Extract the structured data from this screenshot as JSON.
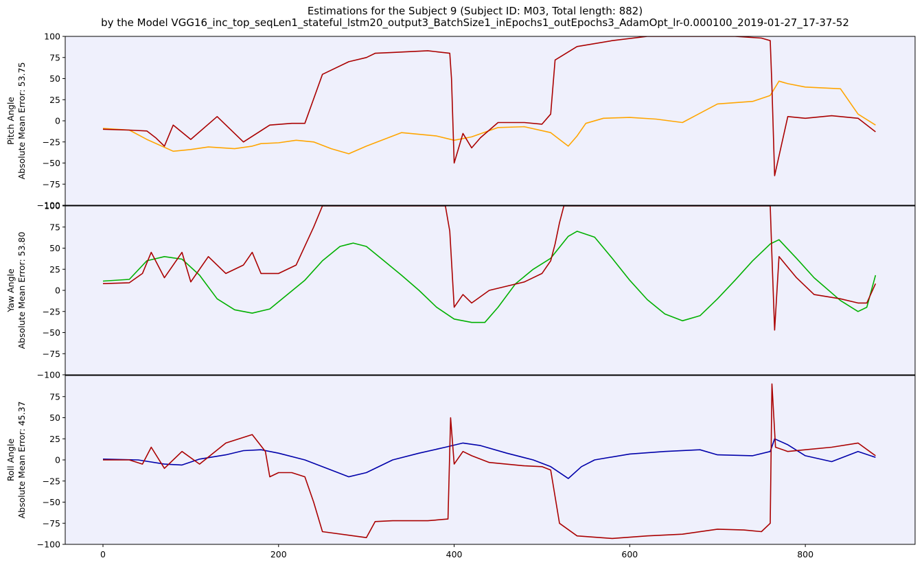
{
  "title_line1": "Estimations for the Subject 9 (Subject ID: M03, Total length: 882)",
  "title_line2": "by the Model VGG16_inc_top_seqLen1_stateful_lstm20_output3_BatchSize1_inEpochs1_outEpochs3_AdamOpt_lr-0.000100_2019-01-27_17-37-52",
  "colors": {
    "panel_bg": "#eff0fc",
    "estimate": "#aa0000",
    "pitch_truth": "#ffa500",
    "yaw_truth": "#00b000",
    "roll_truth": "#0000aa"
  },
  "chart_data": [
    {
      "type": "line",
      "id": "pitch",
      "ylabel_line1": "Pitch Angle",
      "ylabel_line2": "Absolute Mean Error: 53.75",
      "xlim": [
        -43,
        925
      ],
      "ylim": [
        -100,
        100
      ],
      "yticks": [
        -100,
        -75,
        -50,
        -25,
        0,
        25,
        50,
        75,
        100
      ],
      "xticks": [
        0,
        200,
        400,
        600,
        800
      ],
      "grid": false,
      "series": [
        {
          "role": "ground_truth",
          "color": "#ffa500",
          "x": [
            0,
            30,
            50,
            80,
            100,
            120,
            150,
            170,
            180,
            200,
            220,
            240,
            260,
            280,
            300,
            340,
            380,
            400,
            420,
            450,
            480,
            510,
            520,
            530,
            540,
            550,
            570,
            600,
            630,
            660,
            700,
            740,
            760,
            770,
            780,
            800,
            840,
            860,
            880
          ],
          "y": [
            -9,
            -11,
            -22,
            -36,
            -34,
            -31,
            -33,
            -30,
            -27,
            -26,
            -23,
            -25,
            -33,
            -39,
            -30,
            -14,
            -18,
            -23,
            -19,
            -8,
            -7,
            -14,
            -22,
            -30,
            -18,
            -3,
            3,
            4,
            2,
            -2,
            20,
            23,
            30,
            47,
            44,
            40,
            38,
            8,
            -5
          ]
        },
        {
          "role": "estimate",
          "color": "#aa0000",
          "x": [
            0,
            30,
            50,
            60,
            70,
            80,
            100,
            130,
            160,
            190,
            215,
            230,
            250,
            280,
            300,
            310,
            330,
            370,
            395,
            397,
            400,
            410,
            420,
            430,
            450,
            480,
            500,
            510,
            515,
            540,
            580,
            620,
            680,
            720,
            750,
            760,
            762,
            765,
            780,
            800,
            830,
            860,
            880
          ],
          "y": [
            -10,
            -11,
            -12,
            -20,
            -30,
            -5,
            -22,
            5,
            -25,
            -5,
            -3,
            -3,
            55,
            70,
            75,
            80,
            81,
            83,
            80,
            50,
            -50,
            -15,
            -32,
            -20,
            -2,
            -2,
            -4,
            8,
            72,
            88,
            95,
            100,
            100,
            100,
            98,
            95,
            40,
            -65,
            5,
            3,
            6,
            3,
            -13
          ]
        }
      ]
    },
    {
      "type": "line",
      "id": "yaw",
      "ylabel_line1": "Yaw Angle",
      "ylabel_line2": "Absolute Mean Error: 53.80",
      "xlim": [
        -43,
        925
      ],
      "ylim": [
        -100,
        100
      ],
      "yticks": [
        -100,
        -75,
        -50,
        -25,
        0,
        25,
        50,
        75,
        100
      ],
      "xticks": [
        0,
        200,
        400,
        600,
        800
      ],
      "grid": false,
      "series": [
        {
          "role": "ground_truth",
          "color": "#00b000",
          "x": [
            0,
            30,
            50,
            70,
            90,
            110,
            130,
            150,
            170,
            190,
            210,
            230,
            250,
            270,
            285,
            300,
            320,
            340,
            360,
            380,
            400,
            420,
            435,
            450,
            470,
            490,
            510,
            530,
            540,
            560,
            580,
            600,
            620,
            640,
            660,
            680,
            700,
            720,
            740,
            760,
            770,
            790,
            810,
            840,
            860,
            870,
            880
          ],
          "y": [
            11,
            13,
            35,
            40,
            37,
            18,
            -10,
            -23,
            -27,
            -22,
            -5,
            12,
            35,
            52,
            56,
            52,
            35,
            18,
            0,
            -20,
            -34,
            -38,
            -38,
            -20,
            8,
            25,
            38,
            64,
            70,
            63,
            38,
            12,
            -11,
            -28,
            -36,
            -30,
            -10,
            12,
            35,
            55,
            60,
            38,
            15,
            -12,
            -25,
            -20,
            18
          ]
        },
        {
          "role": "estimate",
          "color": "#aa0000",
          "x": [
            0,
            30,
            45,
            55,
            70,
            90,
            100,
            120,
            140,
            160,
            170,
            180,
            200,
            220,
            240,
            250,
            300,
            390,
            395,
            400,
            410,
            420,
            440,
            480,
            500,
            510,
            515,
            520,
            525,
            760,
            762,
            765,
            770,
            790,
            810,
            840,
            860,
            870,
            880
          ],
          "y": [
            8,
            9,
            20,
            45,
            15,
            45,
            10,
            40,
            20,
            30,
            45,
            20,
            20,
            30,
            75,
            100,
            100,
            100,
            70,
            -20,
            -5,
            -15,
            0,
            10,
            20,
            35,
            55,
            80,
            100,
            100,
            40,
            -47,
            40,
            15,
            -5,
            -10,
            -15,
            -15,
            8
          ]
        }
      ]
    },
    {
      "type": "line",
      "id": "roll",
      "ylabel_line1": "Roll Angle",
      "ylabel_line2": "Absolute Mean Error: 45.37",
      "xlim": [
        -43,
        925
      ],
      "ylim": [
        -100,
        100
      ],
      "yticks": [
        -100,
        -75,
        -50,
        -25,
        0,
        25,
        50,
        75
      ],
      "xticks": [
        0,
        200,
        400,
        600,
        800
      ],
      "xtick_labels": [
        "0",
        "200",
        "400",
        "600",
        "800"
      ],
      "grid": false,
      "series": [
        {
          "role": "ground_truth",
          "color": "#0000aa",
          "x": [
            0,
            40,
            70,
            90,
            110,
            140,
            160,
            180,
            200,
            230,
            260,
            280,
            300,
            330,
            360,
            390,
            410,
            430,
            460,
            490,
            510,
            530,
            545,
            560,
            600,
            640,
            680,
            700,
            740,
            760,
            765,
            780,
            800,
            830,
            860,
            880
          ],
          "y": [
            1,
            0,
            -5,
            -6,
            1,
            6,
            11,
            12,
            8,
            0,
            -12,
            -20,
            -15,
            0,
            8,
            15,
            20,
            17,
            8,
            0,
            -8,
            -22,
            -8,
            0,
            7,
            10,
            12,
            6,
            5,
            10,
            25,
            18,
            5,
            -2,
            10,
            3
          ]
        },
        {
          "role": "estimate",
          "color": "#aa0000",
          "x": [
            0,
            30,
            45,
            55,
            70,
            90,
            110,
            140,
            170,
            185,
            190,
            200,
            215,
            230,
            240,
            250,
            300,
            310,
            330,
            370,
            393,
            396,
            400,
            410,
            420,
            440,
            480,
            500,
            510,
            520,
            540,
            580,
            620,
            660,
            700,
            730,
            750,
            760,
            762,
            766,
            780,
            800,
            830,
            860,
            880
          ],
          "y": [
            0,
            0,
            -5,
            15,
            -10,
            10,
            -5,
            20,
            30,
            10,
            -20,
            -15,
            -15,
            -20,
            -50,
            -85,
            -92,
            -73,
            -72,
            -72,
            -70,
            50,
            -5,
            10,
            5,
            -3,
            -7,
            -8,
            -12,
            -75,
            -90,
            -93,
            -90,
            -88,
            -82,
            -83,
            -85,
            -75,
            90,
            15,
            10,
            12,
            15,
            20,
            5
          ]
        }
      ]
    }
  ]
}
